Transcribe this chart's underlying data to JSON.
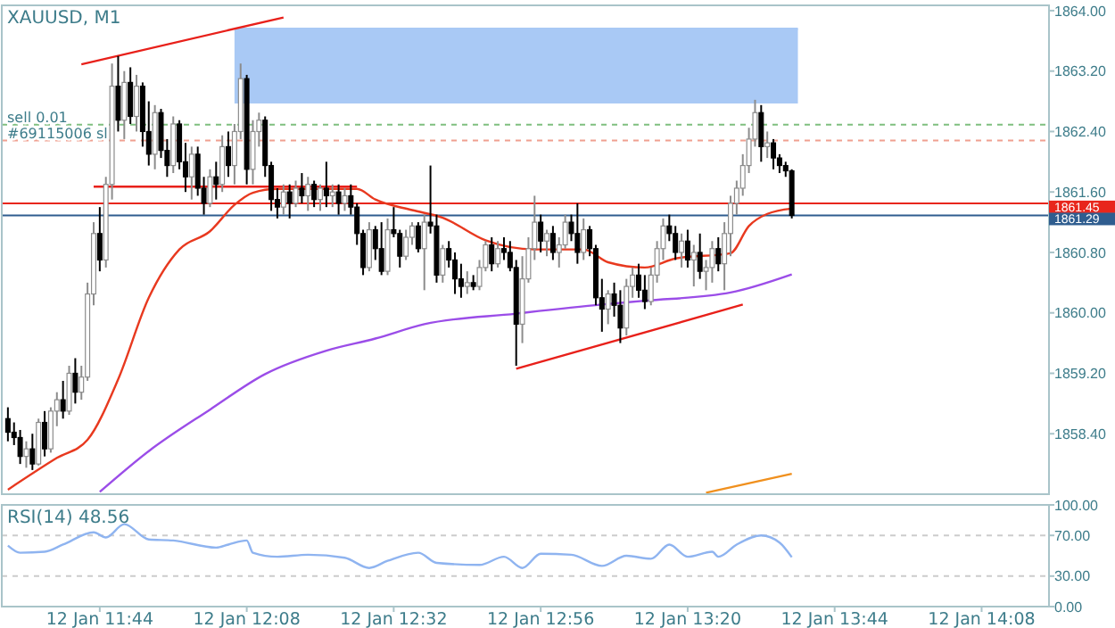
{
  "chart_data": [
    {
      "type": "candlestick",
      "title": "XAUUSD, M1",
      "x": [
        "--01-12T11:29",
        "--01-12T11:30",
        "--01-12T11:31",
        "--01-12T11:32",
        "--01-12T11:33",
        "--01-12T11:34",
        "--01-12T11:35",
        "--01-12T11:36",
        "--01-12T11:37",
        "--01-12T11:38",
        "--01-12T11:39",
        "--01-12T11:40",
        "--01-12T11:41",
        "--01-12T11:42",
        "--01-12T11:43",
        "--01-12T11:44",
        "--01-12T11:45",
        "--01-12T11:46",
        "--01-12T11:47",
        "--01-12T11:48",
        "--01-12T11:49",
        "--01-12T11:50",
        "--01-12T11:51",
        "--01-12T11:52",
        "--01-12T11:53",
        "--01-12T11:54",
        "--01-12T11:55",
        "--01-12T11:56",
        "--01-12T11:57",
        "--01-12T11:58",
        "--01-12T11:59",
        "--01-12T12:00",
        "--01-12T12:01",
        "--01-12T12:02",
        "--01-12T12:03",
        "--01-12T12:04",
        "--01-12T12:05",
        "--01-12T12:06",
        "--01-12T12:07",
        "--01-12T12:08",
        "--01-12T12:09",
        "--01-12T12:10",
        "--01-12T12:11",
        "--01-12T12:12",
        "--01-12T12:13",
        "--01-12T12:14",
        "--01-12T12:15",
        "--01-12T12:16",
        "--01-12T12:17",
        "--01-12T12:18",
        "--01-12T12:19",
        "--01-12T12:20",
        "--01-12T12:21",
        "--01-12T12:22",
        "--01-12T12:23",
        "--01-12T12:24",
        "--01-12T12:25",
        "--01-12T12:26",
        "--01-12T12:27",
        "--01-12T12:28",
        "--01-12T12:29",
        "--01-12T12:30",
        "--01-12T12:31",
        "--01-12T12:32",
        "--01-12T12:33",
        "--01-12T12:34",
        "--01-12T12:35",
        "--01-12T12:36",
        "--01-12T12:37",
        "--01-12T12:38",
        "--01-12T12:39",
        "--01-12T12:40",
        "--01-12T12:41",
        "--01-12T12:42",
        "--01-12T12:43",
        "--01-12T12:44",
        "--01-12T12:45",
        "--01-12T12:46",
        "--01-12T12:47",
        "--01-12T12:48",
        "--01-12T12:49",
        "--01-12T12:50",
        "--01-12T12:51",
        "--01-12T12:52",
        "--01-12T12:53",
        "--01-12T12:54",
        "--01-12T12:55",
        "--01-12T12:56",
        "--01-12T12:57",
        "--01-12T12:58",
        "--01-12T12:59",
        "--01-12T13:00",
        "--01-12T13:01",
        "--01-12T13:02",
        "--01-12T13:03",
        "--01-12T13:04",
        "--01-12T13:05",
        "--01-12T13:06",
        "--01-12T13:07",
        "--01-12T13:08",
        "--01-12T13:09",
        "--01-12T13:10",
        "--01-12T13:11",
        "--01-12T13:12",
        "--01-12T13:13",
        "--01-12T13:14",
        "--01-12T13:15",
        "--01-12T13:16",
        "--01-12T13:17",
        "--01-12T13:18",
        "--01-12T13:19",
        "--01-12T13:20",
        "--01-12T13:21",
        "--01-12T13:22",
        "--01-12T13:23",
        "--01-12T13:24",
        "--01-12T13:25",
        "--01-12T13:26",
        "--01-12T13:27",
        "--01-12T13:28",
        "--01-12T13:29",
        "--01-12T13:30",
        "--01-12T13:31",
        "--01-12T13:32",
        "--01-12T13:33",
        "--01-12T13:34",
        "--01-12T13:35",
        "--01-12T13:36",
        "--01-12T13:37"
      ],
      "ohlc": [
        [
          1858.6,
          1858.75,
          1858.3,
          1858.42
        ],
        [
          1858.42,
          1858.55,
          1858.25,
          1858.35
        ],
        [
          1858.35,
          1858.45,
          1858.0,
          1858.1
        ],
        [
          1858.1,
          1858.3,
          1857.95,
          1858.2
        ],
        [
          1858.2,
          1858.4,
          1857.92,
          1858.0
        ],
        [
          1858.0,
          1858.6,
          1857.98,
          1858.55
        ],
        [
          1858.55,
          1858.7,
          1858.1,
          1858.2
        ],
        [
          1858.2,
          1858.75,
          1858.15,
          1858.7
        ],
        [
          1858.7,
          1858.95,
          1858.5,
          1858.85
        ],
        [
          1858.85,
          1859.1,
          1858.6,
          1858.7
        ],
        [
          1858.7,
          1859.3,
          1858.65,
          1859.2
        ],
        [
          1859.2,
          1859.4,
          1858.8,
          1858.95
        ],
        [
          1858.95,
          1859.3,
          1858.85,
          1859.15
        ],
        [
          1859.15,
          1860.4,
          1859.1,
          1860.25
        ],
        [
          1860.25,
          1861.2,
          1860.1,
          1861.05
        ],
        [
          1861.05,
          1861.4,
          1860.55,
          1860.7
        ],
        [
          1860.7,
          1861.8,
          1860.6,
          1861.7
        ],
        [
          1861.7,
          1863.3,
          1861.5,
          1863.0
        ],
        [
          1863.0,
          1863.4,
          1862.4,
          1862.55
        ],
        [
          1862.55,
          1863.2,
          1862.3,
          1863.05
        ],
        [
          1863.05,
          1863.25,
          1862.5,
          1862.6
        ],
        [
          1862.6,
          1863.15,
          1862.4,
          1863.0
        ],
        [
          1863.0,
          1863.05,
          1862.2,
          1862.4
        ],
        [
          1862.4,
          1862.8,
          1861.95,
          1862.1
        ],
        [
          1862.1,
          1862.75,
          1861.9,
          1862.65
        ],
        [
          1862.65,
          1862.7,
          1862.05,
          1862.15
        ],
        [
          1862.15,
          1862.3,
          1861.8,
          1861.95
        ],
        [
          1861.95,
          1862.6,
          1861.85,
          1862.5
        ],
        [
          1862.5,
          1862.55,
          1861.9,
          1862.0
        ],
        [
          1862.0,
          1862.25,
          1861.6,
          1861.8
        ],
        [
          1861.8,
          1862.2,
          1861.5,
          1862.1
        ],
        [
          1862.1,
          1862.2,
          1861.55,
          1861.65
        ],
        [
          1861.65,
          1861.8,
          1861.3,
          1861.45
        ],
        [
          1861.45,
          1861.9,
          1861.4,
          1861.8
        ],
        [
          1861.8,
          1862.0,
          1861.5,
          1861.7
        ],
        [
          1861.7,
          1862.35,
          1861.6,
          1862.2
        ],
        [
          1862.2,
          1862.4,
          1861.8,
          1861.95
        ],
        [
          1861.95,
          1862.5,
          1861.7,
          1862.4
        ],
        [
          1862.4,
          1863.3,
          1862.3,
          1863.1
        ],
        [
          1863.1,
          1863.15,
          1861.7,
          1861.9
        ],
        [
          1861.9,
          1862.55,
          1861.7,
          1862.4
        ],
        [
          1862.4,
          1862.65,
          1862.2,
          1862.55
        ],
        [
          1862.55,
          1862.6,
          1861.8,
          1861.95
        ],
        [
          1861.95,
          1862.0,
          1861.35,
          1861.5
        ],
        [
          1861.5,
          1861.65,
          1861.25,
          1861.4
        ],
        [
          1861.4,
          1861.7,
          1861.3,
          1861.6
        ],
        [
          1861.6,
          1861.7,
          1861.25,
          1861.45
        ],
        [
          1861.45,
          1861.75,
          1861.4,
          1861.65
        ],
        [
          1861.65,
          1861.85,
          1861.45,
          1861.55
        ],
        [
          1861.55,
          1861.8,
          1861.35,
          1861.7
        ],
        [
          1861.7,
          1861.75,
          1861.4,
          1861.5
        ],
        [
          1861.5,
          1861.7,
          1861.35,
          1861.65
        ],
        [
          1861.65,
          1862.0,
          1861.4,
          1861.55
        ],
        [
          1861.55,
          1861.7,
          1861.4,
          1861.6
        ],
        [
          1861.6,
          1861.7,
          1861.3,
          1861.45
        ],
        [
          1861.45,
          1861.65,
          1861.35,
          1861.55
        ],
        [
          1861.55,
          1861.7,
          1861.3,
          1861.4
        ],
        [
          1861.4,
          1861.45,
          1860.9,
          1861.05
        ],
        [
          1861.05,
          1861.1,
          1860.5,
          1860.6
        ],
        [
          1860.6,
          1861.2,
          1860.55,
          1861.1
        ],
        [
          1861.1,
          1861.15,
          1860.7,
          1860.85
        ],
        [
          1860.85,
          1861.2,
          1860.5,
          1860.55
        ],
        [
          1860.55,
          1861.25,
          1860.5,
          1861.1
        ],
        [
          1861.1,
          1861.4,
          1861.0,
          1861.05
        ],
        [
          1861.05,
          1861.1,
          1860.6,
          1860.75
        ],
        [
          1860.75,
          1861.1,
          1860.7,
          1861.0
        ],
        [
          1861.0,
          1861.2,
          1860.9,
          1861.15
        ],
        [
          1861.15,
          1861.2,
          1860.8,
          1860.85
        ],
        [
          1860.85,
          1861.3,
          1860.3,
          1861.2
        ],
        [
          1861.2,
          1861.95,
          1861.05,
          1861.15
        ],
        [
          1861.15,
          1861.3,
          1860.4,
          1860.5
        ],
        [
          1860.5,
          1860.9,
          1860.4,
          1860.85
        ],
        [
          1860.85,
          1860.95,
          1860.6,
          1860.7
        ],
        [
          1860.7,
          1860.8,
          1860.25,
          1860.45
        ],
        [
          1860.45,
          1860.65,
          1860.2,
          1860.35
        ],
        [
          1860.35,
          1860.55,
          1860.25,
          1860.4
        ],
        [
          1860.4,
          1860.5,
          1860.3,
          1860.35
        ],
        [
          1860.35,
          1860.7,
          1860.3,
          1860.6
        ],
        [
          1860.6,
          1860.95,
          1860.55,
          1860.9
        ],
        [
          1860.9,
          1861.0,
          1860.55,
          1860.65
        ],
        [
          1860.65,
          1860.95,
          1860.6,
          1860.85
        ],
        [
          1860.85,
          1861.0,
          1860.7,
          1860.8
        ],
        [
          1860.8,
          1860.95,
          1860.55,
          1860.6
        ],
        [
          1860.6,
          1860.7,
          1859.3,
          1859.85
        ],
        [
          1859.85,
          1860.75,
          1859.6,
          1860.45
        ],
        [
          1860.45,
          1861.0,
          1860.4,
          1860.85
        ],
        [
          1860.85,
          1861.55,
          1860.7,
          1861.2
        ],
        [
          1861.2,
          1861.3,
          1860.8,
          1860.95
        ],
        [
          1860.95,
          1861.1,
          1860.75,
          1861.05
        ],
        [
          1861.05,
          1861.15,
          1860.7,
          1860.8
        ],
        [
          1860.8,
          1861.0,
          1860.6,
          1860.9
        ],
        [
          1860.9,
          1861.3,
          1860.85,
          1861.2
        ],
        [
          1861.2,
          1861.3,
          1860.95,
          1861.05
        ],
        [
          1861.05,
          1861.45,
          1860.65,
          1860.8
        ],
        [
          1860.8,
          1861.25,
          1860.7,
          1861.1
        ],
        [
          1861.1,
          1861.15,
          1860.75,
          1860.85
        ],
        [
          1860.85,
          1860.9,
          1860.1,
          1860.2
        ],
        [
          1860.2,
          1860.45,
          1859.75,
          1860.05
        ],
        [
          1860.05,
          1860.3,
          1859.85,
          1860.25
        ],
        [
          1860.25,
          1860.4,
          1859.95,
          1860.1
        ],
        [
          1860.1,
          1860.3,
          1859.6,
          1859.8
        ],
        [
          1859.8,
          1860.45,
          1859.7,
          1860.35
        ],
        [
          1860.35,
          1860.6,
          1860.2,
          1860.5
        ],
        [
          1860.5,
          1860.65,
          1860.2,
          1860.3
        ],
        [
          1860.3,
          1860.5,
          1860.05,
          1860.15
        ],
        [
          1860.15,
          1860.6,
          1860.1,
          1860.5
        ],
        [
          1860.5,
          1860.95,
          1860.4,
          1860.85
        ],
        [
          1860.85,
          1861.25,
          1860.7,
          1861.15
        ],
        [
          1861.15,
          1861.3,
          1860.95,
          1861.05
        ],
        [
          1861.05,
          1861.15,
          1860.7,
          1860.8
        ],
        [
          1860.8,
          1861.05,
          1860.6,
          1860.95
        ],
        [
          1860.95,
          1861.1,
          1860.6,
          1860.7
        ],
        [
          1860.7,
          1860.9,
          1860.35,
          1860.8
        ],
        [
          1860.8,
          1861.05,
          1860.45,
          1860.55
        ],
        [
          1860.55,
          1860.7,
          1860.3,
          1860.6
        ],
        [
          1860.6,
          1860.95,
          1860.4,
          1860.85
        ],
        [
          1860.85,
          1861.0,
          1860.55,
          1860.65
        ],
        [
          1860.65,
          1861.2,
          1860.3,
          1861.05
        ],
        [
          1861.05,
          1861.55,
          1860.75,
          1861.45
        ],
        [
          1861.45,
          1861.75,
          1861.3,
          1861.65
        ],
        [
          1861.65,
          1862.1,
          1861.55,
          1861.95
        ],
        [
          1861.95,
          1862.45,
          1861.85,
          1862.3
        ],
        [
          1862.3,
          1862.82,
          1862.2,
          1862.65
        ],
        [
          1862.65,
          1862.75,
          1862.0,
          1862.2
        ],
        [
          1862.2,
          1862.4,
          1862.05,
          1862.25
        ],
        [
          1862.25,
          1862.3,
          1861.9,
          1862.05
        ],
        [
          1862.05,
          1862.1,
          1861.85,
          1861.95
        ],
        [
          1861.95,
          1862.0,
          1861.8,
          1861.88
        ],
        [
          1861.88,
          1861.9,
          1861.25,
          1861.29
        ]
      ],
      "series": [
        {
          "type": "line",
          "color": "#a9c9f5",
          "x": [
            "--01-12T12:06",
            "--01-12T12:52",
            "--01-12T13:38"
          ],
          "values": [
            1863.76,
            1863.76,
            1863.76
          ],
          "upper": [
            1863.76,
            1863.76,
            1863.76
          ],
          "lower": [
            1862.77,
            1862.77,
            1862.77
          ]
        },
        {
          "type": "line",
          "color": "#e8391f",
          "x": [
            "--01-12T11:29",
            "--01-12T11:37",
            "--01-12T11:42",
            "--01-12T11:47",
            "--01-12T11:52",
            "--01-12T11:57",
            "--01-12T12:02",
            "--01-12T12:06",
            "--01-12T12:09",
            "--01-12T12:13",
            "--01-12T12:26",
            "--01-12T12:29",
            "--01-12T12:35",
            "--01-12T12:40",
            "--01-12T12:47",
            "--01-12T12:55",
            "--01-12T13:03",
            "--01-12T13:07",
            "--01-12T13:13",
            "--01-12T13:18",
            "--01-12T13:27",
            "--01-12T13:30",
            "--01-12T13:33",
            "--01-12T13:37"
          ],
          "values": [
            1857.66,
            1858.08,
            1858.32,
            1859.12,
            1860.2,
            1860.84,
            1861.08,
            1861.43,
            1861.59,
            1861.64,
            1861.64,
            1861.5,
            1861.36,
            1861.26,
            1860.96,
            1860.84,
            1860.84,
            1860.67,
            1860.6,
            1860.72,
            1860.79,
            1861.15,
            1861.31,
            1861.38
          ]
        },
        {
          "type": "line",
          "color": "#9b4de8",
          "x": [
            "--01-12T11:44",
            "--01-12T11:52",
            "--01-12T12:02",
            "--01-12T12:11",
            "--01-12T12:21",
            "--01-12T12:29",
            "--01-12T12:37",
            "--01-12T12:52",
            "--01-12T13:06",
            "--01-12T13:13",
            "--01-12T13:27",
            "--01-12T13:37"
          ],
          "values": [
            1857.63,
            1858.17,
            1858.72,
            1859.19,
            1859.5,
            1859.66,
            1859.85,
            1859.99,
            1860.11,
            1860.16,
            1860.27,
            1860.51
          ]
        },
        {
          "type": "line",
          "color": "#f0901e",
          "x": [
            "--01-12T13:23",
            "--01-12T13:37"
          ],
          "values": [
            1857.62,
            1857.87
          ]
        },
        {
          "type": "line",
          "color": "#e8201a",
          "x": [
            "--01-12T11:43",
            "--01-12T12:26"
          ],
          "values": [
            1861.67,
            1861.67
          ]
        },
        {
          "type": "line",
          "color": "#e8201a",
          "x": [
            "--01-12T11:41",
            "--01-12T12:14"
          ],
          "values": [
            1863.29,
            1863.91
          ]
        },
        {
          "type": "line",
          "color": "#e8201a",
          "x": [
            "--01-12T12:52",
            "--01-12T13:29"
          ],
          "values": [
            1859.26,
            1860.11
          ]
        }
      ],
      "ref_lines": [
        {
          "axis": "y",
          "value": 1862.49,
          "label": "sell 0.01",
          "color": "#7fbf7f",
          "line_style": "dashed"
        },
        {
          "axis": "y",
          "value": 1862.28,
          "label": "#69115006 sl",
          "color": "#f0a090",
          "line_style": "dashed"
        },
        {
          "axis": "y",
          "value": 1861.45,
          "label": "1861.45",
          "color": "#e8261c",
          "line_style": "solid"
        },
        {
          "axis": "y",
          "value": 1861.29,
          "label": "1861.29",
          "color": "#2f5d8f",
          "line_style": "solid"
        }
      ],
      "xlim": [
        "--01-12T11:28",
        "--01-12T14:19"
      ],
      "ylim": [
        1857.6,
        1864.07
      ],
      "yticks": [
        {
          "value": 1864,
          "label": "1864.00"
        },
        {
          "value": 1863.2,
          "label": "1863.20"
        },
        {
          "value": 1862.4,
          "label": "1862.40"
        },
        {
          "value": 1861.6,
          "label": "1861.60"
        },
        {
          "value": 1860.8,
          "label": "1860.80"
        },
        {
          "value": 1860,
          "label": "1860.00"
        },
        {
          "value": 1859.2,
          "label": "1859.20"
        },
        {
          "value": 1858.4,
          "label": "1858.40"
        }
      ],
      "tick_labels": "y"
    },
    {
      "type": "line",
      "title": "RSI(14) 48.56",
      "series": [
        {
          "color": "#8fb4f0",
          "x": [
            "--01-12T11:29",
            "--01-12T11:31",
            "--01-12T11:35",
            "--01-12T11:38",
            "--01-12T11:43",
            "--01-12T11:45",
            "--01-12T11:48",
            "--01-12T11:52",
            "--01-12T11:56",
            "--01-12T12:03",
            "--01-12T12:05",
            "--01-12T12:08",
            "--01-12T12:09",
            "--01-12T12:13",
            "--01-12T12:18",
            "--01-12T12:24",
            "--01-12T12:28",
            "--01-12T12:31",
            "--01-12T12:36",
            "--01-12T12:39",
            "--01-12T12:46",
            "--01-12T12:50",
            "--01-12T12:53",
            "--01-12T12:56",
            "--01-12T13:01",
            "--01-12T13:06",
            "--01-12T13:10",
            "--01-12T13:14",
            "--01-12T13:17",
            "--01-12T13:20",
            "--01-12T13:24",
            "--01-12T13:25",
            "--01-12T13:28",
            "--01-12T13:32",
            "--01-12T13:35",
            "--01-12T13:37"
          ],
          "values": [
            60,
            53,
            54,
            61,
            73,
            68,
            81,
            66,
            65,
            58,
            61,
            65,
            53,
            49,
            51,
            48,
            38,
            45,
            53,
            43,
            41,
            49,
            38,
            52,
            51,
            40,
            50,
            47,
            61,
            49,
            54,
            49,
            61,
            70,
            63,
            48.56
          ]
        }
      ],
      "ref_lines": [
        {
          "axis": "y",
          "value": 70,
          "color": "#cccccc",
          "line_style": "dashed"
        },
        {
          "axis": "y",
          "value": 30,
          "color": "#cccccc",
          "line_style": "dashed"
        }
      ],
      "xlim": [
        "--01-12T11:28",
        "--01-12T14:19"
      ],
      "ylim": [
        0,
        100
      ],
      "yticks": [
        {
          "value": 100,
          "label": "100.00"
        },
        {
          "value": 70,
          "label": "70.00"
        },
        {
          "value": 30,
          "label": "30.00"
        },
        {
          "value": 0,
          "label": "0.00"
        }
      ],
      "xticks": [
        {
          "value": "--01-12T11:44",
          "label": "12 Jan 11:44"
        },
        {
          "value": "--01-12T12:08",
          "label": "12 Jan 12:08"
        },
        {
          "value": "--01-12T12:32",
          "label": "12 Jan 12:32"
        },
        {
          "value": "--01-12T12:56",
          "label": "12 Jan 12:56"
        },
        {
          "value": "--01-12T13:20",
          "label": "12 Jan 13:20"
        },
        {
          "value": "--01-12T13:44",
          "label": "12 Jan 13:44"
        },
        {
          "value": "--01-12T14:08",
          "label": "12 Jan 14:08"
        }
      ]
    }
  ]
}
